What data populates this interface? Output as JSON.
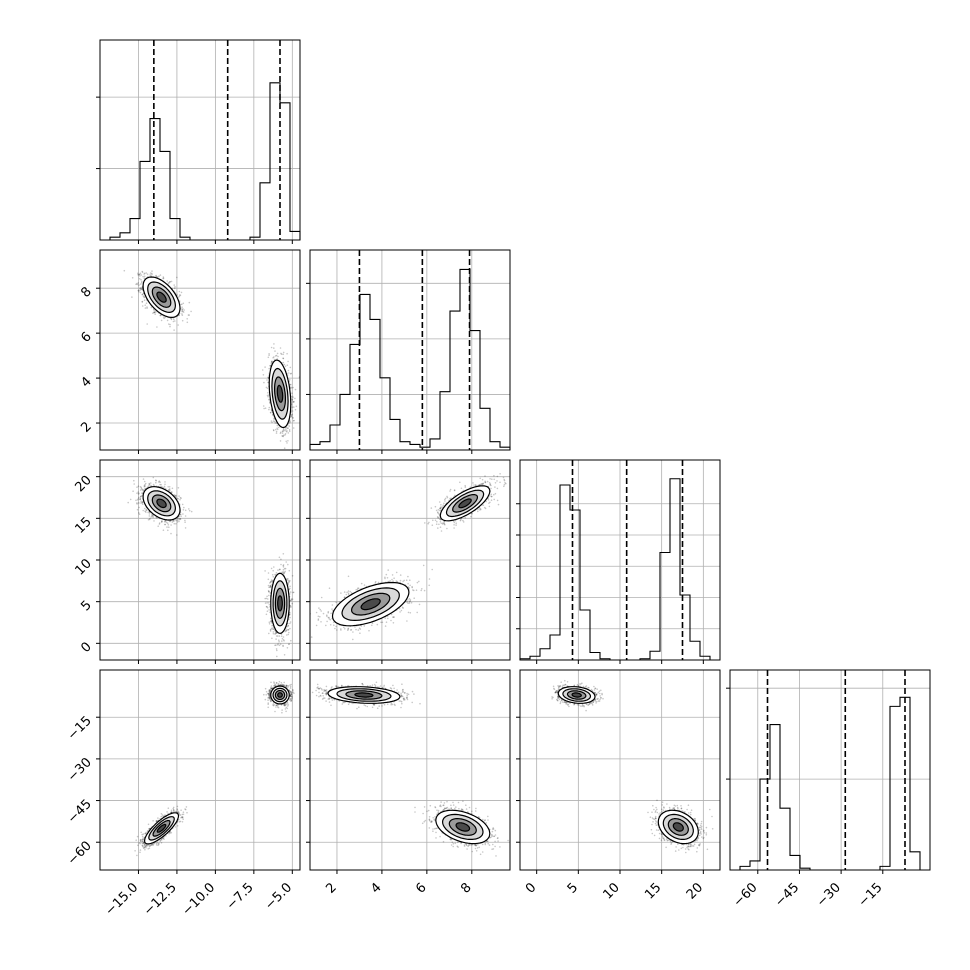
{
  "chart_data": {
    "type": "corner",
    "parameters": [
      {
        "name": "",
        "xlim": [
          -17.5,
          -4.5
        ],
        "ylim": [
          -17.5,
          -4.5
        ],
        "ticks": [
          -15.0,
          -12.5,
          -10.0,
          -7.5,
          -5.0
        ],
        "tick_labels": [
          "−15.0",
          "−12.5",
          "−10.0",
          "−7.5",
          "−5.0"
        ],
        "quantiles": [
          -14.0,
          -9.2,
          -5.8
        ],
        "hist": {
          "edges": [
            -17.5,
            -16.85,
            -16.2,
            -15.55,
            -14.9,
            -14.25,
            -13.6,
            -12.95,
            -12.3,
            -11.65,
            -11.0,
            -10.35,
            -9.7,
            -9.05,
            -8.4,
            -7.75,
            -7.1,
            -6.45,
            -5.8,
            -5.15,
            -4.5
          ],
          "counts": [
            0,
            2,
            5,
            15,
            55,
            85,
            62,
            15,
            2,
            0,
            0,
            0,
            0,
            0,
            0,
            2,
            40,
            110,
            96,
            6
          ],
          "ymax": 140,
          "yticks": [
            50,
            100
          ]
        }
      },
      {
        "name": "",
        "xlim": [
          0.8,
          9.7
        ],
        "ylim": [
          0.8,
          9.7
        ],
        "ticks": [
          2,
          4,
          6,
          8
        ],
        "tick_labels": [
          "2",
          "4",
          "6",
          "8"
        ],
        "quantiles": [
          3.0,
          5.8,
          7.9
        ],
        "hist": {
          "edges": [
            0.8,
            1.245,
            1.69,
            2.135,
            2.58,
            3.025,
            3.47,
            3.915,
            4.36,
            4.805,
            5.25,
            5.695,
            6.14,
            6.585,
            7.03,
            7.475,
            7.92,
            8.365,
            8.81,
            9.255,
            9.7
          ],
          "counts": [
            2,
            3,
            9,
            20,
            38,
            56,
            47,
            26,
            11,
            3,
            2,
            1,
            4,
            21,
            50,
            65,
            43,
            15,
            3,
            1
          ],
          "ymax": 72,
          "yticks": [
            20,
            40,
            60
          ]
        }
      },
      {
        "name": "",
        "xlim": [
          -2,
          22
        ],
        "ylim": [
          -2,
          22
        ],
        "ticks": [
          0,
          5,
          10,
          15,
          20
        ],
        "tick_labels": [
          "0",
          "5",
          "10",
          "15",
          "20"
        ],
        "quantiles": [
          4.3,
          10.8,
          17.5
        ],
        "hist": {
          "edges": [
            -2,
            -0.8,
            0.4,
            1.6,
            2.8,
            4.0,
            5.2,
            6.4,
            7.6,
            8.8,
            10.0,
            11.2,
            12.4,
            13.6,
            14.8,
            16.0,
            17.2,
            18.4,
            19.6,
            20.8,
            22.0
          ],
          "counts": [
            1,
            3,
            9,
            20,
            140,
            120,
            40,
            6,
            1,
            0,
            0,
            0,
            1,
            7,
            86,
            145,
            52,
            15,
            3,
            0
          ],
          "ymax": 160,
          "yticks": [
            25,
            50,
            75,
            100,
            125
          ]
        }
      },
      {
        "name": "",
        "xlim": [
          -70,
          2
        ],
        "ylim": [
          -70,
          2
        ],
        "ticks": [
          -60,
          -45,
          -30,
          -15
        ],
        "tick_labels": [
          "−60",
          "−45",
          "−30",
          "−15"
        ],
        "quantiles": [
          -56.5,
          -28.5,
          -7.0
        ],
        "hist": {
          "edges": [
            -70,
            -66.4,
            -62.8,
            -59.2,
            -55.6,
            -52.0,
            -48.4,
            -44.8,
            -41.2,
            -37.6,
            -34.0,
            -30.4,
            -26.8,
            -23.2,
            -19.6,
            -16.0,
            -12.4,
            -8.8,
            -5.2,
            -1.6,
            2.0
          ],
          "counts": [
            0,
            2,
            5,
            50,
            80,
            34,
            8,
            1,
            0,
            0,
            0,
            0,
            0,
            0,
            0,
            2,
            90,
            95,
            10,
            0
          ],
          "ymax": 110,
          "yticks": [
            50,
            100
          ]
        }
      }
    ],
    "scatter_clusters": [
      {
        "pair": [
          0,
          1
        ],
        "clusters": [
          {
            "mean": [
              -13.5,
              7.6
            ],
            "sd": [
              0.6,
              0.45
            ],
            "rho": -0.55,
            "n": 1400
          },
          {
            "mean": [
              -5.8,
              3.3
            ],
            "sd": [
              0.35,
              0.75
            ],
            "rho": -0.3,
            "n": 1400
          }
        ]
      },
      {
        "pair": [
          0,
          2
        ],
        "clusters": [
          {
            "mean": [
              -13.5,
              16.8
            ],
            "sd": [
              0.6,
              1.0
            ],
            "rho": -0.4,
            "n": 1400
          },
          {
            "mean": [
              -5.8,
              4.8
            ],
            "sd": [
              0.3,
              1.8
            ],
            "rho": 0.0,
            "n": 1400
          }
        ]
      },
      {
        "pair": [
          1,
          2
        ],
        "clusters": [
          {
            "mean": [
              7.7,
              16.8
            ],
            "sd": [
              0.55,
              1.05
            ],
            "rho": 0.7,
            "n": 1400
          },
          {
            "mean": [
              3.5,
              4.7
            ],
            "sd": [
              0.85,
              1.3
            ],
            "rho": 0.55,
            "n": 1400
          }
        ]
      },
      {
        "pair": [
          0,
          3
        ],
        "clusters": [
          {
            "mean": [
              -13.5,
              -55.0
            ],
            "sd": [
              0.55,
              2.8
            ],
            "rho": 0.8,
            "n": 1400
          },
          {
            "mean": [
              -5.8,
              -7.0
            ],
            "sd": [
              0.3,
              1.6
            ],
            "rho": 0.0,
            "n": 1400
          }
        ]
      },
      {
        "pair": [
          1,
          3
        ],
        "clusters": [
          {
            "mean": [
              3.2,
              -7.0
            ],
            "sd": [
              0.8,
              1.5
            ],
            "rho": -0.2,
            "n": 1400
          },
          {
            "mean": [
              7.6,
              -54.5
            ],
            "sd": [
              0.6,
              3.0
            ],
            "rho": -0.4,
            "n": 1400
          }
        ]
      },
      {
        "pair": [
          2,
          3
        ],
        "clusters": [
          {
            "mean": [
              4.8,
              -7.0
            ],
            "sd": [
              1.1,
              1.5
            ],
            "rho": -0.2,
            "n": 1400
          },
          {
            "mean": [
              17.0,
              -54.5
            ],
            "sd": [
              1.2,
              3.0
            ],
            "rho": -0.3,
            "n": 1400
          }
        ]
      }
    ],
    "grid": true,
    "legend": false,
    "title": ""
  }
}
